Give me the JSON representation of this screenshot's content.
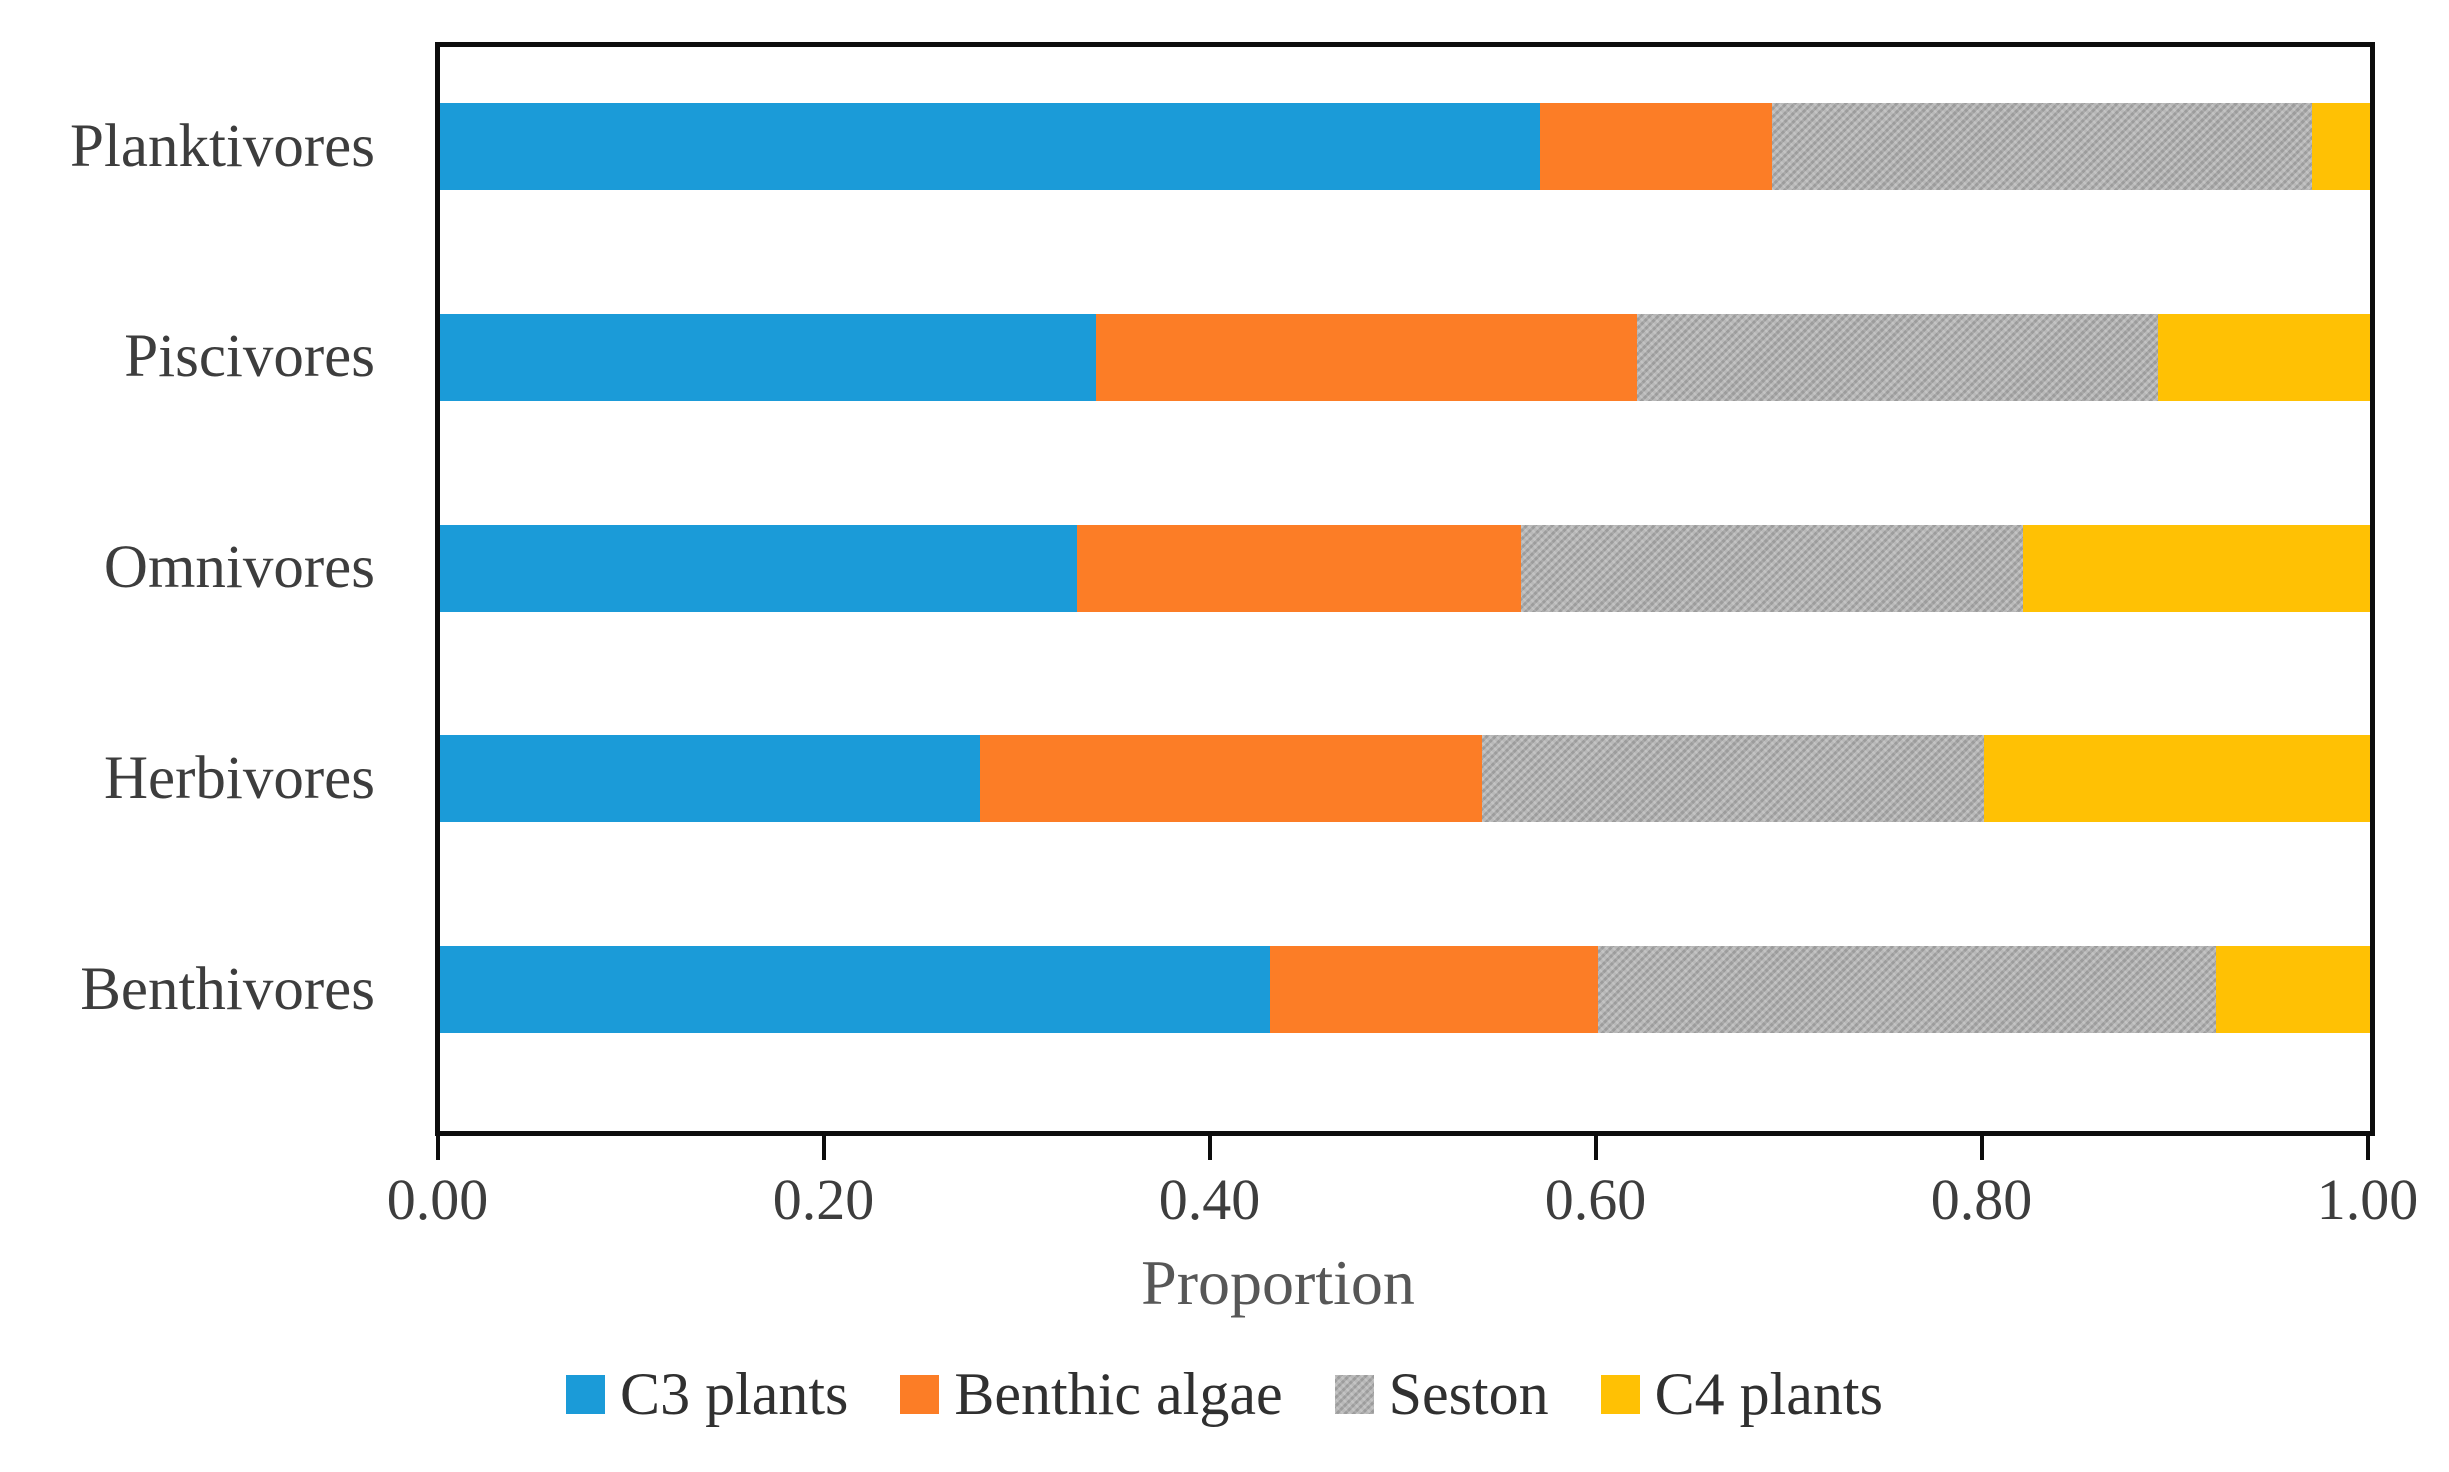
{
  "chart_data": {
    "type": "bar",
    "orientation": "horizontal",
    "stacked": true,
    "title": "",
    "xlabel": "Proportion",
    "ylabel": "",
    "xlim": [
      0.0,
      1.0
    ],
    "grid": false,
    "legend_position": "bottom",
    "xticks": [
      {
        "label": "0.00",
        "value": 0.0
      },
      {
        "label": "0.20",
        "value": 0.2
      },
      {
        "label": "0.40",
        "value": 0.4
      },
      {
        "label": "0.60",
        "value": 0.6
      },
      {
        "label": "0.80",
        "value": 0.8
      },
      {
        "label": "1.00",
        "value": 1.0
      }
    ],
    "categories": [
      "Planktivores",
      "Piscivores",
      "Omnivores",
      "Herbivores",
      "Benthivores"
    ],
    "series": [
      {
        "name": "C3 plants",
        "color": "#1b9bd8",
        "textured": false,
        "values": [
          0.57,
          0.34,
          0.33,
          0.28,
          0.43
        ]
      },
      {
        "name": "Benthic algae",
        "color": "#fc7d26",
        "textured": false,
        "values": [
          0.12,
          0.28,
          0.23,
          0.26,
          0.17
        ]
      },
      {
        "name": "Seston",
        "color": "#ababab",
        "textured": true,
        "values": [
          0.28,
          0.27,
          0.26,
          0.26,
          0.32
        ]
      },
      {
        "name": "C4 plants",
        "color": "#ffc104",
        "textured": false,
        "values": [
          0.03,
          0.11,
          0.18,
          0.2,
          0.08
        ]
      }
    ],
    "axis_color": "#0d0d0d",
    "label_color": "#3d3d3d",
    "axis_title_color": "#575757"
  }
}
